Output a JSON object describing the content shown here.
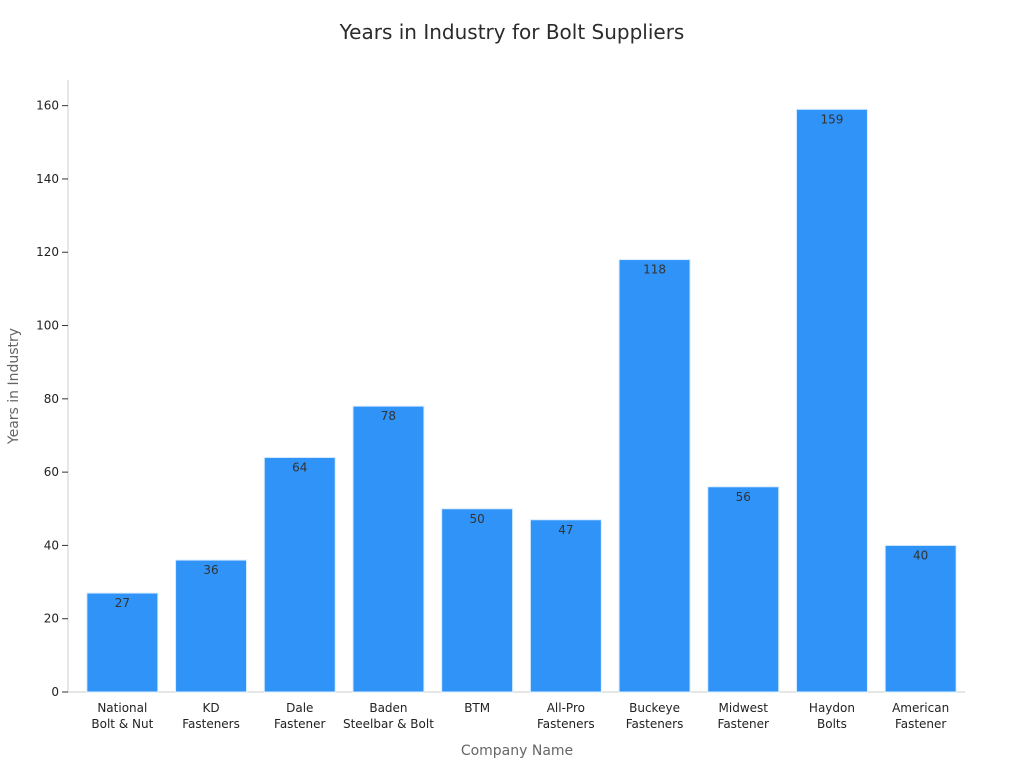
{
  "chart_data": {
    "type": "bar",
    "title": "Years in Industry for Bolt Suppliers",
    "xlabel": "Company Name",
    "ylabel": "Years in Industry",
    "categories": [
      [
        "National",
        "Bolt & Nut"
      ],
      [
        "KD",
        "Fasteners"
      ],
      [
        "Dale",
        "Fastener"
      ],
      [
        "Baden",
        "Steelbar & Bolt"
      ],
      [
        "BTM"
      ],
      [
        "All-Pro",
        "Fasteners"
      ],
      [
        "Buckeye",
        "Fasteners"
      ],
      [
        "Midwest",
        "Fastener"
      ],
      [
        "Haydon",
        "Bolts"
      ],
      [
        "American",
        "Fastener"
      ]
    ],
    "values": [
      27,
      36,
      64,
      78,
      50,
      47,
      118,
      56,
      159,
      40
    ],
    "ylim": [
      0,
      167
    ],
    "yticks": [
      0,
      20,
      40,
      60,
      80,
      100,
      120,
      140,
      160
    ],
    "grid": false,
    "legend": "none",
    "bar_color": "#2f93f8",
    "bar_edge_color": "#d9ecff"
  }
}
